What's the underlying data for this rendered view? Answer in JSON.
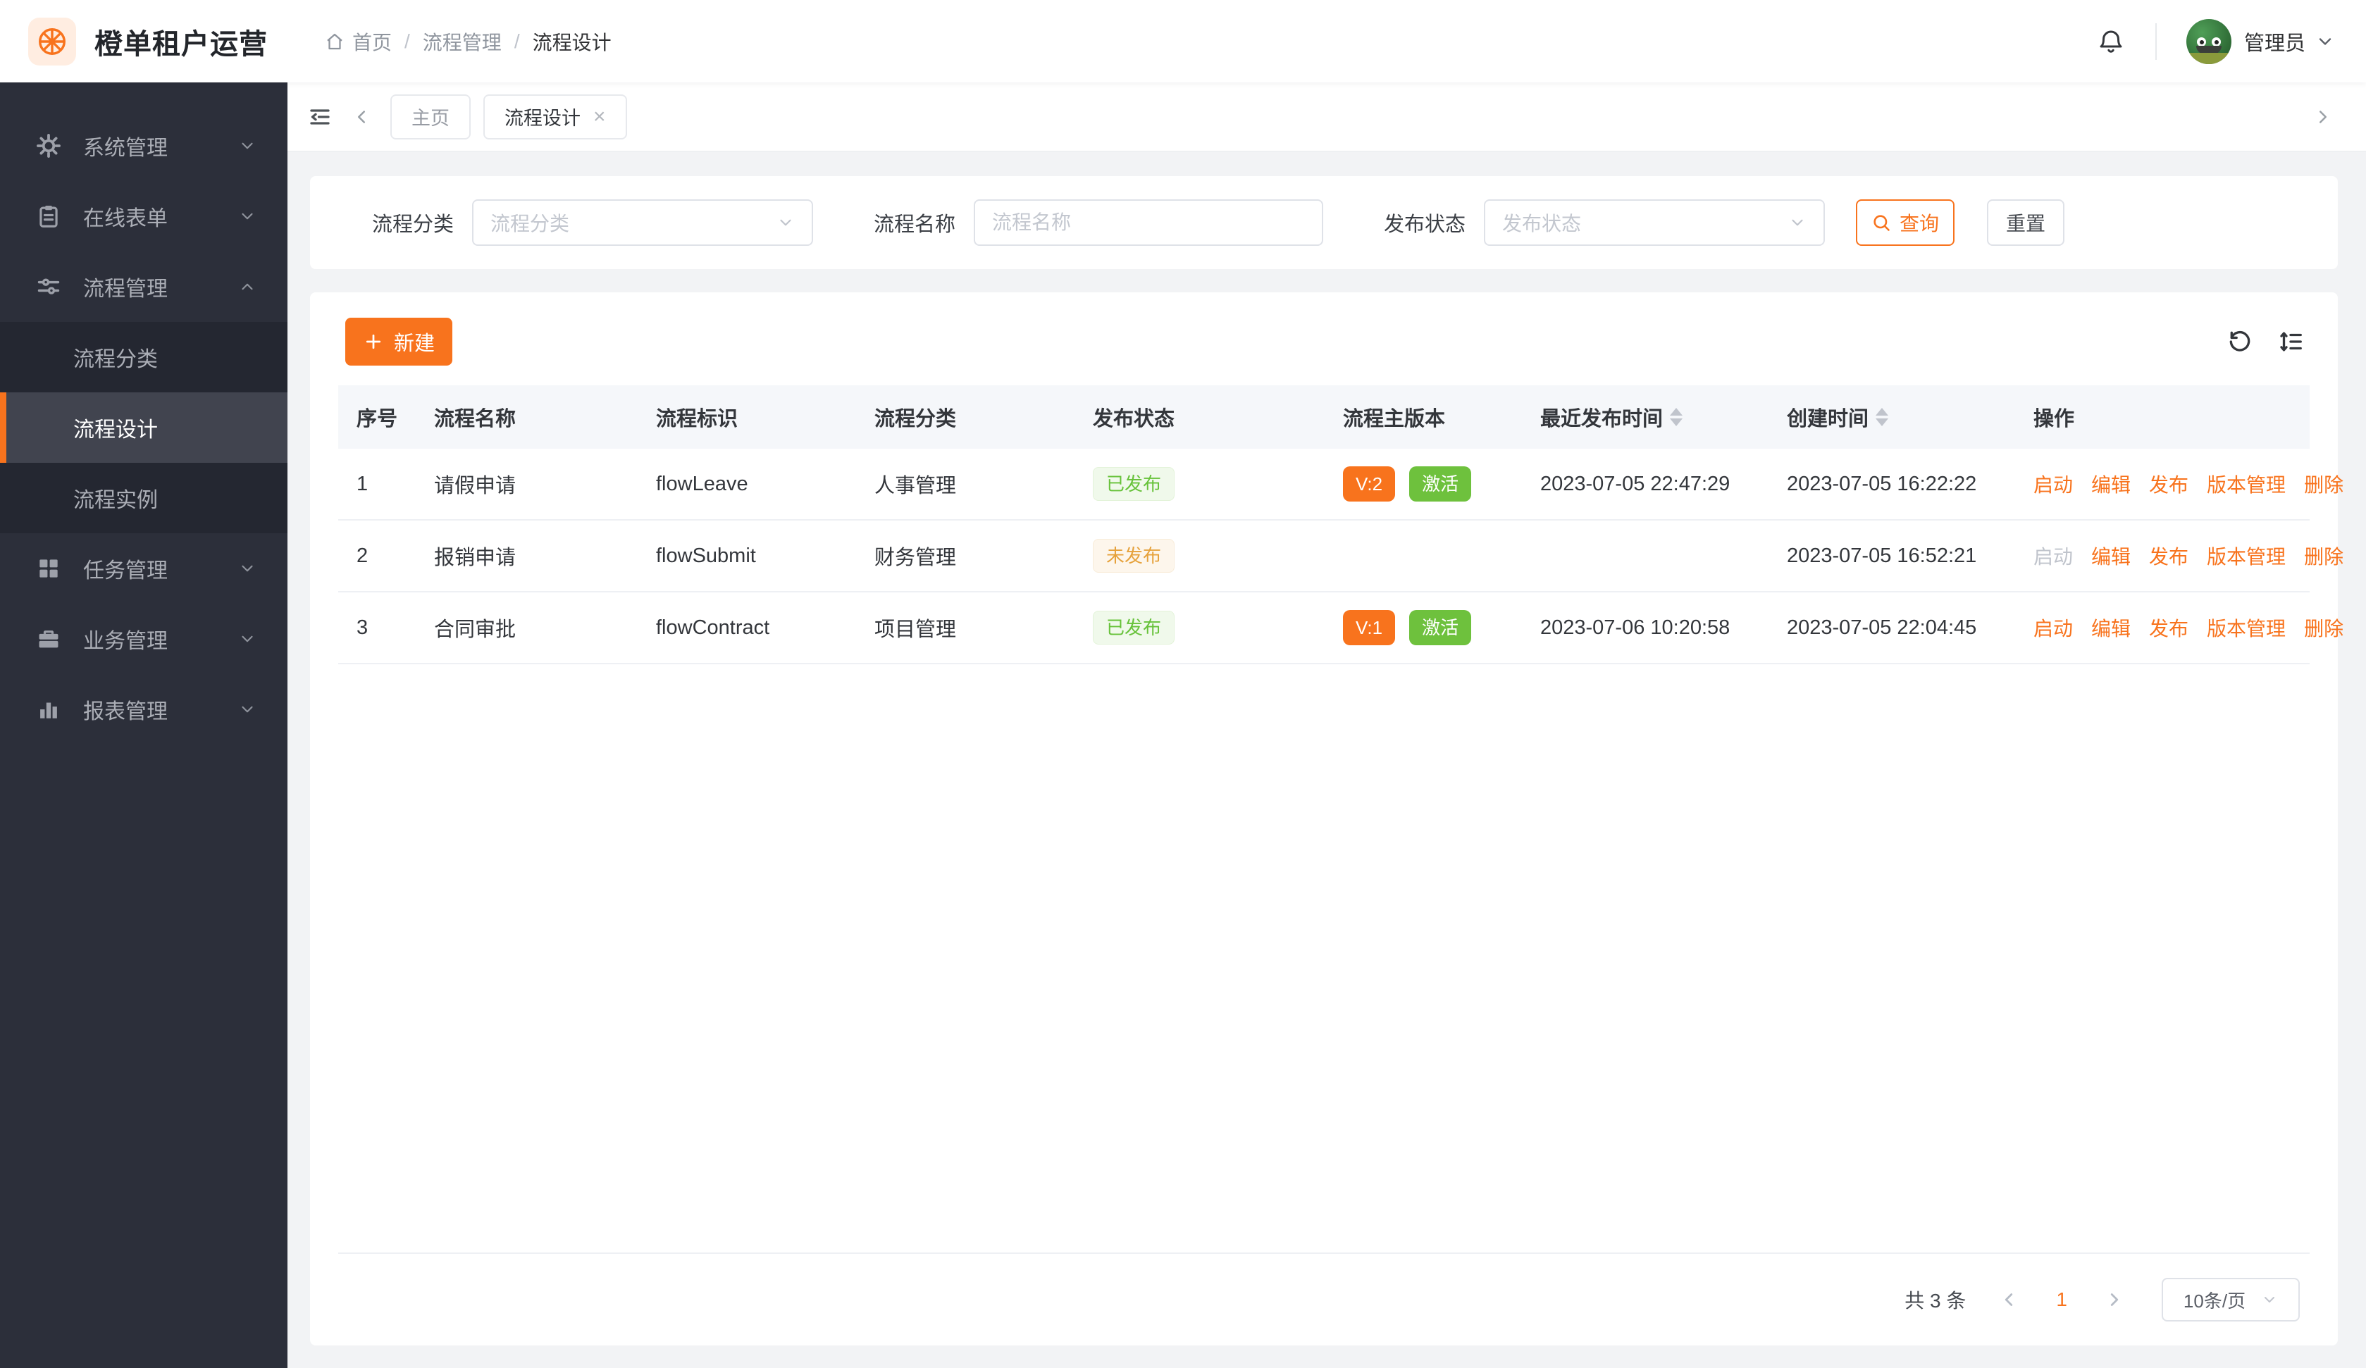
{
  "app": {
    "title": "橙单租户运营"
  },
  "header": {
    "breadcrumb": [
      "首页",
      "流程管理",
      "流程设计"
    ],
    "user_name": "管理员",
    "icons": [
      "home-icon",
      "bell-icon",
      "avatar",
      "chevron-down-icon"
    ]
  },
  "sidebar": {
    "items": [
      {
        "label": "系统管理",
        "icon": "gear-icon",
        "expanded": false
      },
      {
        "label": "在线表单",
        "icon": "form-icon",
        "expanded": false
      },
      {
        "label": "流程管理",
        "icon": "sliders-icon",
        "expanded": true,
        "children": [
          {
            "label": "流程分类",
            "active": false
          },
          {
            "label": "流程设计",
            "active": true
          },
          {
            "label": "流程实例",
            "active": false
          }
        ]
      },
      {
        "label": "任务管理",
        "icon": "grid-icon",
        "expanded": false
      },
      {
        "label": "业务管理",
        "icon": "briefcase-icon",
        "expanded": false
      },
      {
        "label": "报表管理",
        "icon": "chart-icon",
        "expanded": false
      }
    ]
  },
  "tabs": {
    "items": [
      {
        "label": "主页",
        "active": false,
        "closable": false
      },
      {
        "label": "流程设计",
        "active": true,
        "closable": true
      }
    ]
  },
  "filters": {
    "category_label": "流程分类",
    "category_placeholder": "流程分类",
    "name_label": "流程名称",
    "name_placeholder": "流程名称",
    "name_value": "",
    "status_label": "发布状态",
    "status_placeholder": "发布状态",
    "query_label": "查询",
    "reset_label": "重置"
  },
  "toolbar": {
    "create_label": "新建"
  },
  "table": {
    "columns": [
      {
        "label": "序号",
        "sortable": false
      },
      {
        "label": "流程名称",
        "sortable": false
      },
      {
        "label": "流程标识",
        "sortable": false
      },
      {
        "label": "流程分类",
        "sortable": false
      },
      {
        "label": "发布状态",
        "sortable": false
      },
      {
        "label": "流程主版本",
        "sortable": false
      },
      {
        "label": "最近发布时间",
        "sortable": true
      },
      {
        "label": "创建时间",
        "sortable": true
      },
      {
        "label": "操作",
        "sortable": false
      }
    ],
    "rows": [
      {
        "index": "1",
        "name": "请假申请",
        "key": "flowLeave",
        "category": "人事管理",
        "publish_status": "已发布",
        "published": true,
        "version": "V:2",
        "active_tag": "激活",
        "last_publish_time": "2023-07-05 22:47:29",
        "create_time": "2023-07-05 16:22:22",
        "actions": [
          {
            "label": "启动",
            "disabled": false
          },
          {
            "label": "编辑",
            "disabled": false
          },
          {
            "label": "发布",
            "disabled": false
          },
          {
            "label": "版本管理",
            "disabled": false
          },
          {
            "label": "删除",
            "disabled": false
          }
        ]
      },
      {
        "index": "2",
        "name": "报销申请",
        "key": "flowSubmit",
        "category": "财务管理",
        "publish_status": "未发布",
        "published": false,
        "version": "",
        "active_tag": "",
        "last_publish_time": "",
        "create_time": "2023-07-05 16:52:21",
        "actions": [
          {
            "label": "启动",
            "disabled": true
          },
          {
            "label": "编辑",
            "disabled": false
          },
          {
            "label": "发布",
            "disabled": false
          },
          {
            "label": "版本管理",
            "disabled": false
          },
          {
            "label": "删除",
            "disabled": false
          }
        ]
      },
      {
        "index": "3",
        "name": "合同审批",
        "key": "flowContract",
        "category": "项目管理",
        "publish_status": "已发布",
        "published": true,
        "version": "V:1",
        "active_tag": "激活",
        "last_publish_time": "2023-07-06 10:20:58",
        "create_time": "2023-07-05 22:04:45",
        "actions": [
          {
            "label": "启动",
            "disabled": false
          },
          {
            "label": "编辑",
            "disabled": false
          },
          {
            "label": "发布",
            "disabled": false
          },
          {
            "label": "版本管理",
            "disabled": false
          },
          {
            "label": "删除",
            "disabled": false
          }
        ]
      }
    ]
  },
  "pagination": {
    "total_label": "共 3 条",
    "current_page": "1",
    "page_size": "10条/页"
  },
  "colors": {
    "accent_orange": "#f8731d",
    "solid_green": "#6ec13d",
    "tag_published_text": "#67c23a",
    "tag_published_bg": "#f0f9eb",
    "tag_unpublished_text": "#e6a23c",
    "tag_unpublished_bg": "#fdf6ec",
    "sidebar_bg": "#2c2f3a",
    "sidebar_submenu_bg": "#242731",
    "sidebar_active_bg": "#41444f",
    "content_bg": "#f2f3f5",
    "disabled_text": "#c0c4cc"
  }
}
